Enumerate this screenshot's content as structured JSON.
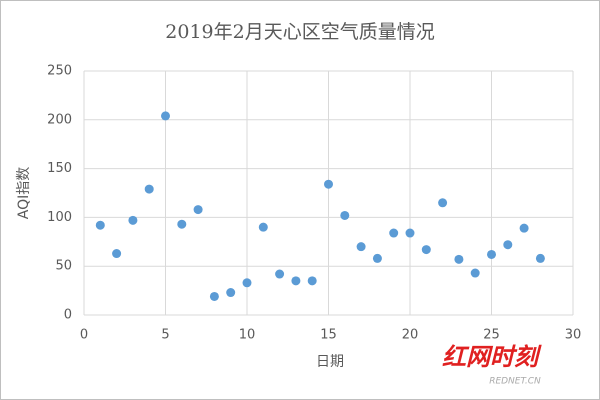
{
  "chart_data": {
    "type": "scatter",
    "title": "2019年2月天心区空气质量情况",
    "x_label": "日期",
    "y_label": "AQI指数",
    "series": [
      {
        "name": "AQI指数",
        "color": "#5b9bd5",
        "x": [
          1,
          2,
          3,
          4,
          5,
          6,
          7,
          8,
          9,
          10,
          11,
          12,
          13,
          14,
          15,
          16,
          17,
          18,
          19,
          20,
          21,
          22,
          23,
          24,
          25,
          26,
          27,
          28
        ],
        "values": [
          92,
          63,
          97,
          129,
          204,
          93,
          108,
          19,
          23,
          33,
          90,
          42,
          35,
          35,
          134,
          102,
          70,
          58,
          84,
          84,
          67,
          115,
          57,
          43,
          62,
          72,
          89,
          58
        ]
      }
    ],
    "xlim": [
      0,
      30
    ],
    "xticks": [
      0,
      5,
      10,
      15,
      20,
      25,
      30
    ],
    "ylim": [
      0,
      250
    ],
    "yticks": [
      0,
      50,
      100,
      150,
      200,
      250
    ],
    "grid": true
  },
  "watermark": {
    "logo": "红网时刻",
    "site": "REDNET.CN"
  }
}
